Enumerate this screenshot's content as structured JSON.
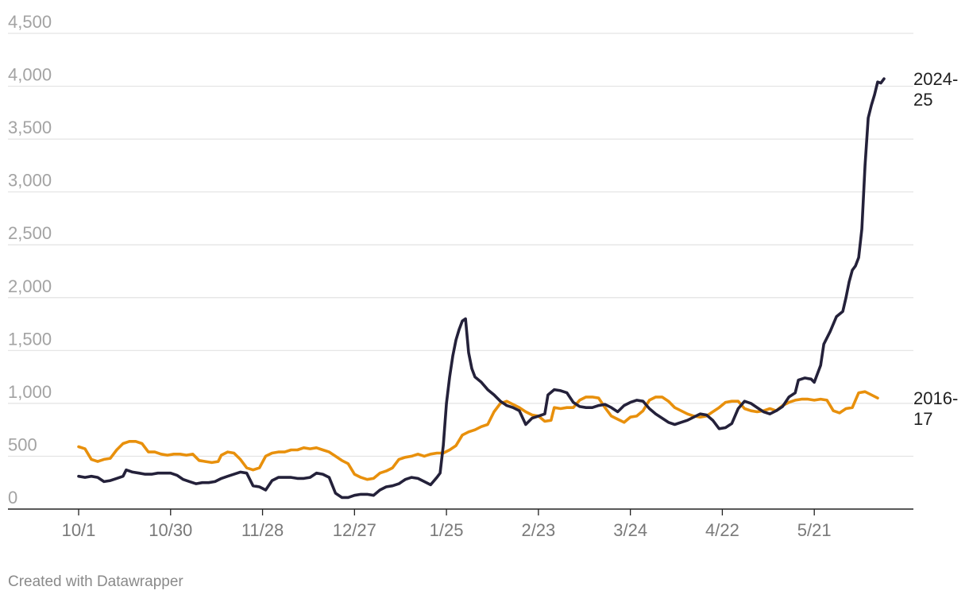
{
  "chart_data": {
    "type": "line",
    "title": "",
    "xlabel": "",
    "ylabel": "",
    "x_range": [
      0,
      258
    ],
    "ylim": [
      0,
      4500
    ],
    "y_ticks": [
      0,
      500,
      1000,
      1500,
      2000,
      2500,
      3000,
      3500,
      4000,
      4500
    ],
    "y_tick_labels": [
      "0",
      "500",
      "1,000",
      "1,500",
      "2,000",
      "2,500",
      "3,000",
      "3,500",
      "4,000",
      "4,500"
    ],
    "x_ticks": [
      {
        "label": "10/1",
        "x": 0
      },
      {
        "label": "10/30",
        "x": 29
      },
      {
        "label": "11/28",
        "x": 58
      },
      {
        "label": "12/27",
        "x": 87
      },
      {
        "label": "1/25",
        "x": 116
      },
      {
        "label": "2/23",
        "x": 145
      },
      {
        "label": "3/24",
        "x": 174
      },
      {
        "label": "4/22",
        "x": 203
      },
      {
        "label": "5/21",
        "x": 232
      }
    ],
    "grid": true,
    "series": [
      {
        "name": "2016-17",
        "label_lines": [
          "2016-",
          "17"
        ],
        "color": "#e8900c",
        "points": [
          [
            0,
            590
          ],
          [
            2,
            570
          ],
          [
            4,
            470
          ],
          [
            6,
            450
          ],
          [
            8,
            470
          ],
          [
            10,
            480
          ],
          [
            12,
            560
          ],
          [
            14,
            620
          ],
          [
            16,
            640
          ],
          [
            18,
            640
          ],
          [
            20,
            620
          ],
          [
            22,
            540
          ],
          [
            24,
            540
          ],
          [
            26,
            520
          ],
          [
            28,
            510
          ],
          [
            30,
            520
          ],
          [
            32,
            520
          ],
          [
            34,
            510
          ],
          [
            36,
            520
          ],
          [
            38,
            460
          ],
          [
            40,
            450
          ],
          [
            42,
            440
          ],
          [
            44,
            450
          ],
          [
            45,
            510
          ],
          [
            47,
            540
          ],
          [
            49,
            530
          ],
          [
            51,
            470
          ],
          [
            53,
            390
          ],
          [
            55,
            370
          ],
          [
            57,
            390
          ],
          [
            59,
            500
          ],
          [
            61,
            530
          ],
          [
            63,
            540
          ],
          [
            65,
            540
          ],
          [
            67,
            560
          ],
          [
            69,
            560
          ],
          [
            71,
            580
          ],
          [
            73,
            570
          ],
          [
            75,
            580
          ],
          [
            77,
            560
          ],
          [
            79,
            540
          ],
          [
            81,
            500
          ],
          [
            83,
            460
          ],
          [
            85,
            430
          ],
          [
            87,
            330
          ],
          [
            89,
            300
          ],
          [
            91,
            280
          ],
          [
            93,
            290
          ],
          [
            95,
            340
          ],
          [
            97,
            360
          ],
          [
            99,
            390
          ],
          [
            101,
            470
          ],
          [
            103,
            490
          ],
          [
            105,
            500
          ],
          [
            107,
            520
          ],
          [
            109,
            500
          ],
          [
            111,
            520
          ],
          [
            113,
            530
          ],
          [
            115,
            530
          ],
          [
            117,
            560
          ],
          [
            119,
            600
          ],
          [
            121,
            700
          ],
          [
            123,
            730
          ],
          [
            125,
            750
          ],
          [
            127,
            780
          ],
          [
            129,
            800
          ],
          [
            131,
            920
          ],
          [
            133,
            1000
          ],
          [
            135,
            1020
          ],
          [
            137,
            990
          ],
          [
            139,
            960
          ],
          [
            141,
            920
          ],
          [
            143,
            890
          ],
          [
            145,
            880
          ],
          [
            147,
            830
          ],
          [
            149,
            840
          ],
          [
            150,
            960
          ],
          [
            152,
            950
          ],
          [
            154,
            960
          ],
          [
            156,
            960
          ],
          [
            158,
            1030
          ],
          [
            160,
            1060
          ],
          [
            162,
            1060
          ],
          [
            164,
            1050
          ],
          [
            166,
            960
          ],
          [
            168,
            880
          ],
          [
            170,
            850
          ],
          [
            172,
            820
          ],
          [
            174,
            870
          ],
          [
            176,
            880
          ],
          [
            178,
            930
          ],
          [
            180,
            1030
          ],
          [
            182,
            1060
          ],
          [
            184,
            1060
          ],
          [
            186,
            1020
          ],
          [
            188,
            960
          ],
          [
            190,
            930
          ],
          [
            192,
            900
          ],
          [
            194,
            880
          ],
          [
            196,
            870
          ],
          [
            198,
            880
          ],
          [
            200,
            920
          ],
          [
            202,
            960
          ],
          [
            204,
            1010
          ],
          [
            206,
            1020
          ],
          [
            208,
            1020
          ],
          [
            210,
            950
          ],
          [
            212,
            930
          ],
          [
            214,
            920
          ],
          [
            216,
            930
          ],
          [
            218,
            950
          ],
          [
            220,
            930
          ],
          [
            222,
            980
          ],
          [
            224,
            1010
          ],
          [
            226,
            1030
          ],
          [
            228,
            1040
          ],
          [
            230,
            1040
          ],
          [
            232,
            1030
          ],
          [
            234,
            1040
          ],
          [
            236,
            1030
          ],
          [
            238,
            930
          ],
          [
            240,
            910
          ],
          [
            242,
            950
          ],
          [
            244,
            960
          ],
          [
            246,
            1100
          ],
          [
            248,
            1110
          ],
          [
            250,
            1080
          ],
          [
            252,
            1050
          ]
        ]
      },
      {
        "name": "2024-25",
        "label_lines": [
          "2024-",
          "25"
        ],
        "color": "#24213a",
        "points": [
          [
            0,
            310
          ],
          [
            2,
            300
          ],
          [
            4,
            310
          ],
          [
            6,
            300
          ],
          [
            8,
            260
          ],
          [
            10,
            270
          ],
          [
            12,
            290
          ],
          [
            14,
            310
          ],
          [
            15,
            370
          ],
          [
            17,
            350
          ],
          [
            19,
            340
          ],
          [
            21,
            330
          ],
          [
            23,
            330
          ],
          [
            25,
            340
          ],
          [
            27,
            340
          ],
          [
            29,
            340
          ],
          [
            31,
            320
          ],
          [
            33,
            280
          ],
          [
            35,
            260
          ],
          [
            37,
            240
          ],
          [
            39,
            250
          ],
          [
            41,
            250
          ],
          [
            43,
            260
          ],
          [
            45,
            290
          ],
          [
            47,
            310
          ],
          [
            49,
            330
          ],
          [
            51,
            350
          ],
          [
            53,
            340
          ],
          [
            55,
            220
          ],
          [
            57,
            210
          ],
          [
            59,
            180
          ],
          [
            61,
            270
          ],
          [
            63,
            300
          ],
          [
            65,
            300
          ],
          [
            67,
            300
          ],
          [
            69,
            290
          ],
          [
            71,
            290
          ],
          [
            73,
            300
          ],
          [
            75,
            340
          ],
          [
            77,
            330
          ],
          [
            79,
            300
          ],
          [
            81,
            150
          ],
          [
            83,
            110
          ],
          [
            85,
            110
          ],
          [
            87,
            130
          ],
          [
            89,
            140
          ],
          [
            91,
            140
          ],
          [
            93,
            130
          ],
          [
            95,
            180
          ],
          [
            97,
            210
          ],
          [
            99,
            220
          ],
          [
            101,
            240
          ],
          [
            103,
            280
          ],
          [
            105,
            300
          ],
          [
            107,
            290
          ],
          [
            109,
            260
          ],
          [
            111,
            230
          ],
          [
            113,
            300
          ],
          [
            114,
            340
          ],
          [
            115,
            600
          ],
          [
            116,
            1000
          ],
          [
            117,
            1250
          ],
          [
            118,
            1450
          ],
          [
            119,
            1600
          ],
          [
            120,
            1700
          ],
          [
            121,
            1780
          ],
          [
            122,
            1800
          ],
          [
            123,
            1480
          ],
          [
            124,
            1330
          ],
          [
            125,
            1250
          ],
          [
            127,
            1200
          ],
          [
            129,
            1130
          ],
          [
            131,
            1080
          ],
          [
            133,
            1020
          ],
          [
            135,
            980
          ],
          [
            137,
            960
          ],
          [
            139,
            930
          ],
          [
            141,
            800
          ],
          [
            143,
            860
          ],
          [
            145,
            880
          ],
          [
            147,
            900
          ],
          [
            148,
            1080
          ],
          [
            150,
            1130
          ],
          [
            152,
            1120
          ],
          [
            154,
            1100
          ],
          [
            156,
            1010
          ],
          [
            158,
            970
          ],
          [
            160,
            960
          ],
          [
            162,
            960
          ],
          [
            164,
            980
          ],
          [
            166,
            990
          ],
          [
            168,
            960
          ],
          [
            170,
            920
          ],
          [
            172,
            980
          ],
          [
            174,
            1010
          ],
          [
            176,
            1030
          ],
          [
            178,
            1020
          ],
          [
            180,
            950
          ],
          [
            182,
            900
          ],
          [
            184,
            860
          ],
          [
            186,
            820
          ],
          [
            188,
            800
          ],
          [
            190,
            820
          ],
          [
            192,
            840
          ],
          [
            194,
            870
          ],
          [
            196,
            900
          ],
          [
            198,
            890
          ],
          [
            200,
            840
          ],
          [
            202,
            760
          ],
          [
            204,
            770
          ],
          [
            206,
            810
          ],
          [
            208,
            950
          ],
          [
            210,
            1020
          ],
          [
            212,
            1000
          ],
          [
            214,
            960
          ],
          [
            216,
            920
          ],
          [
            218,
            900
          ],
          [
            220,
            930
          ],
          [
            222,
            970
          ],
          [
            224,
            1060
          ],
          [
            226,
            1100
          ],
          [
            227,
            1220
          ],
          [
            229,
            1240
          ],
          [
            231,
            1230
          ],
          [
            232,
            1200
          ],
          [
            234,
            1360
          ],
          [
            235,
            1560
          ],
          [
            237,
            1680
          ],
          [
            239,
            1820
          ],
          [
            241,
            1870
          ],
          [
            242,
            2000
          ],
          [
            243,
            2150
          ],
          [
            244,
            2260
          ],
          [
            245,
            2300
          ],
          [
            246,
            2380
          ],
          [
            247,
            2650
          ],
          [
            248,
            3250
          ],
          [
            249,
            3700
          ],
          [
            250,
            3820
          ],
          [
            251,
            3920
          ],
          [
            252,
            4040
          ],
          [
            253,
            4030
          ],
          [
            254,
            4070
          ]
        ]
      }
    ]
  },
  "credit": "Created with Datawrapper"
}
